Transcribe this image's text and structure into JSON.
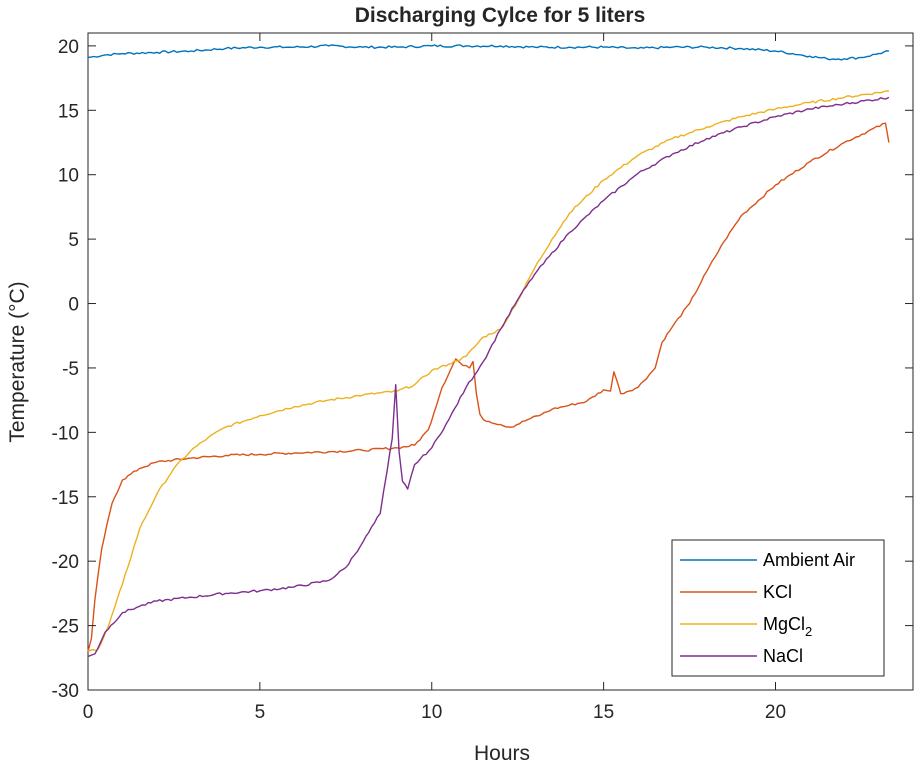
{
  "chart_data": {
    "type": "line",
    "title": "Discharging Cylce for 5 liters",
    "xlabel": "Hours",
    "ylabel": "Temperature (°C)",
    "xlim": [
      0,
      24
    ],
    "ylim": [
      -30,
      21
    ],
    "xticks": [
      0,
      5,
      10,
      15,
      20
    ],
    "yticks": [
      -30,
      -25,
      -20,
      -15,
      -10,
      -5,
      0,
      5,
      10,
      15,
      20
    ],
    "grid": false,
    "legend_position": "bottom-right",
    "series": [
      {
        "name": "Ambient Air",
        "color": "#0072bd",
        "x": [
          0,
          0.5,
          1,
          2,
          3,
          4,
          5,
          6,
          7,
          8,
          9,
          10,
          11,
          12,
          13,
          14,
          15,
          16,
          17,
          18,
          19,
          20,
          21,
          21.5,
          22,
          22.5,
          23,
          23.3
        ],
        "y": [
          19.1,
          19.3,
          19.4,
          19.5,
          19.6,
          19.8,
          19.9,
          19.9,
          20.0,
          19.9,
          19.9,
          20.0,
          20.0,
          20.0,
          19.9,
          19.9,
          19.9,
          19.8,
          19.9,
          19.9,
          19.8,
          19.6,
          19.2,
          19.0,
          19.0,
          19.1,
          19.4,
          19.6
        ]
      },
      {
        "name": "KCl",
        "color": "#d95319",
        "x": [
          0,
          0.1,
          0.2,
          0.4,
          0.7,
          1.0,
          1.5,
          2.0,
          3,
          4,
          5,
          6,
          7,
          8,
          9,
          9.5,
          9.9,
          10.3,
          10.7,
          10.9,
          11.1,
          11.2,
          11.3,
          11.4,
          11.5,
          12,
          12.3,
          12.8,
          13.2,
          13.5,
          14,
          14.5,
          15,
          15.2,
          15.3,
          15.5,
          16,
          16.5,
          16.7,
          17,
          17.5,
          18,
          18.5,
          19,
          20,
          21,
          22,
          23.2,
          23.3
        ],
        "y": [
          -27,
          -26,
          -23,
          -19,
          -15.5,
          -13.7,
          -12.8,
          -12.3,
          -12.0,
          -11.8,
          -11.7,
          -11.6,
          -11.5,
          -11.4,
          -11.2,
          -11.0,
          -9.8,
          -6.5,
          -4.3,
          -4.8,
          -5.0,
          -4.5,
          -7.0,
          -8.6,
          -9.0,
          -9.4,
          -9.6,
          -9.0,
          -8.6,
          -8.2,
          -7.9,
          -7.6,
          -6.7,
          -6.8,
          -5.3,
          -7.0,
          -6.5,
          -5.0,
          -3.0,
          -1.8,
          0.0,
          2.5,
          4.8,
          6.8,
          9.2,
          11.0,
          12.5,
          14.0,
          12.5
        ]
      },
      {
        "name": "MgCl",
        "name_sub": "2",
        "color": "#edb120",
        "x": [
          0,
          0.3,
          0.6,
          1,
          1.5,
          2,
          2.5,
          3,
          3.5,
          4,
          5,
          6,
          7,
          8,
          9,
          9.5,
          10,
          10.5,
          11,
          11.5,
          12,
          12.5,
          13,
          13.5,
          14,
          15,
          16,
          17,
          18,
          19,
          20,
          21,
          22,
          23.3
        ],
        "y": [
          -27,
          -26.8,
          -25,
          -21.8,
          -17.5,
          -14.8,
          -12.8,
          -11.4,
          -10.4,
          -9.6,
          -8.7,
          -8.0,
          -7.5,
          -7.1,
          -6.8,
          -6.3,
          -5.2,
          -4.7,
          -4.1,
          -2.6,
          -2.0,
          0.2,
          2.8,
          5.0,
          7.0,
          9.6,
          11.5,
          12.8,
          13.7,
          14.5,
          15.1,
          15.6,
          16.0,
          16.5
        ]
      },
      {
        "name": "NaCl",
        "color": "#7e2f8e",
        "x": [
          0,
          0.2,
          0.5,
          1,
          1.5,
          2,
          3,
          4,
          5,
          6,
          7,
          7.5,
          8,
          8.5,
          8.7,
          8.85,
          8.95,
          9.05,
          9.15,
          9.3,
          9.5,
          10,
          10.5,
          11,
          11.5,
          12,
          12.5,
          13,
          14,
          15,
          16,
          17,
          18,
          19,
          20,
          21,
          22,
          23.3
        ],
        "y": [
          -27.4,
          -27.2,
          -25.5,
          -24.0,
          -23.5,
          -23.1,
          -22.8,
          -22.5,
          -22.3,
          -22.0,
          -21.5,
          -20.5,
          -18.5,
          -16.3,
          -13.0,
          -10.5,
          -6.3,
          -11.5,
          -13.8,
          -14.4,
          -12.5,
          -11.2,
          -9.0,
          -6.5,
          -4.5,
          -2.0,
          0.3,
          2.3,
          5.5,
          8.0,
          10.1,
          11.6,
          12.8,
          13.7,
          14.5,
          15.1,
          15.5,
          16.0
        ]
      }
    ]
  }
}
